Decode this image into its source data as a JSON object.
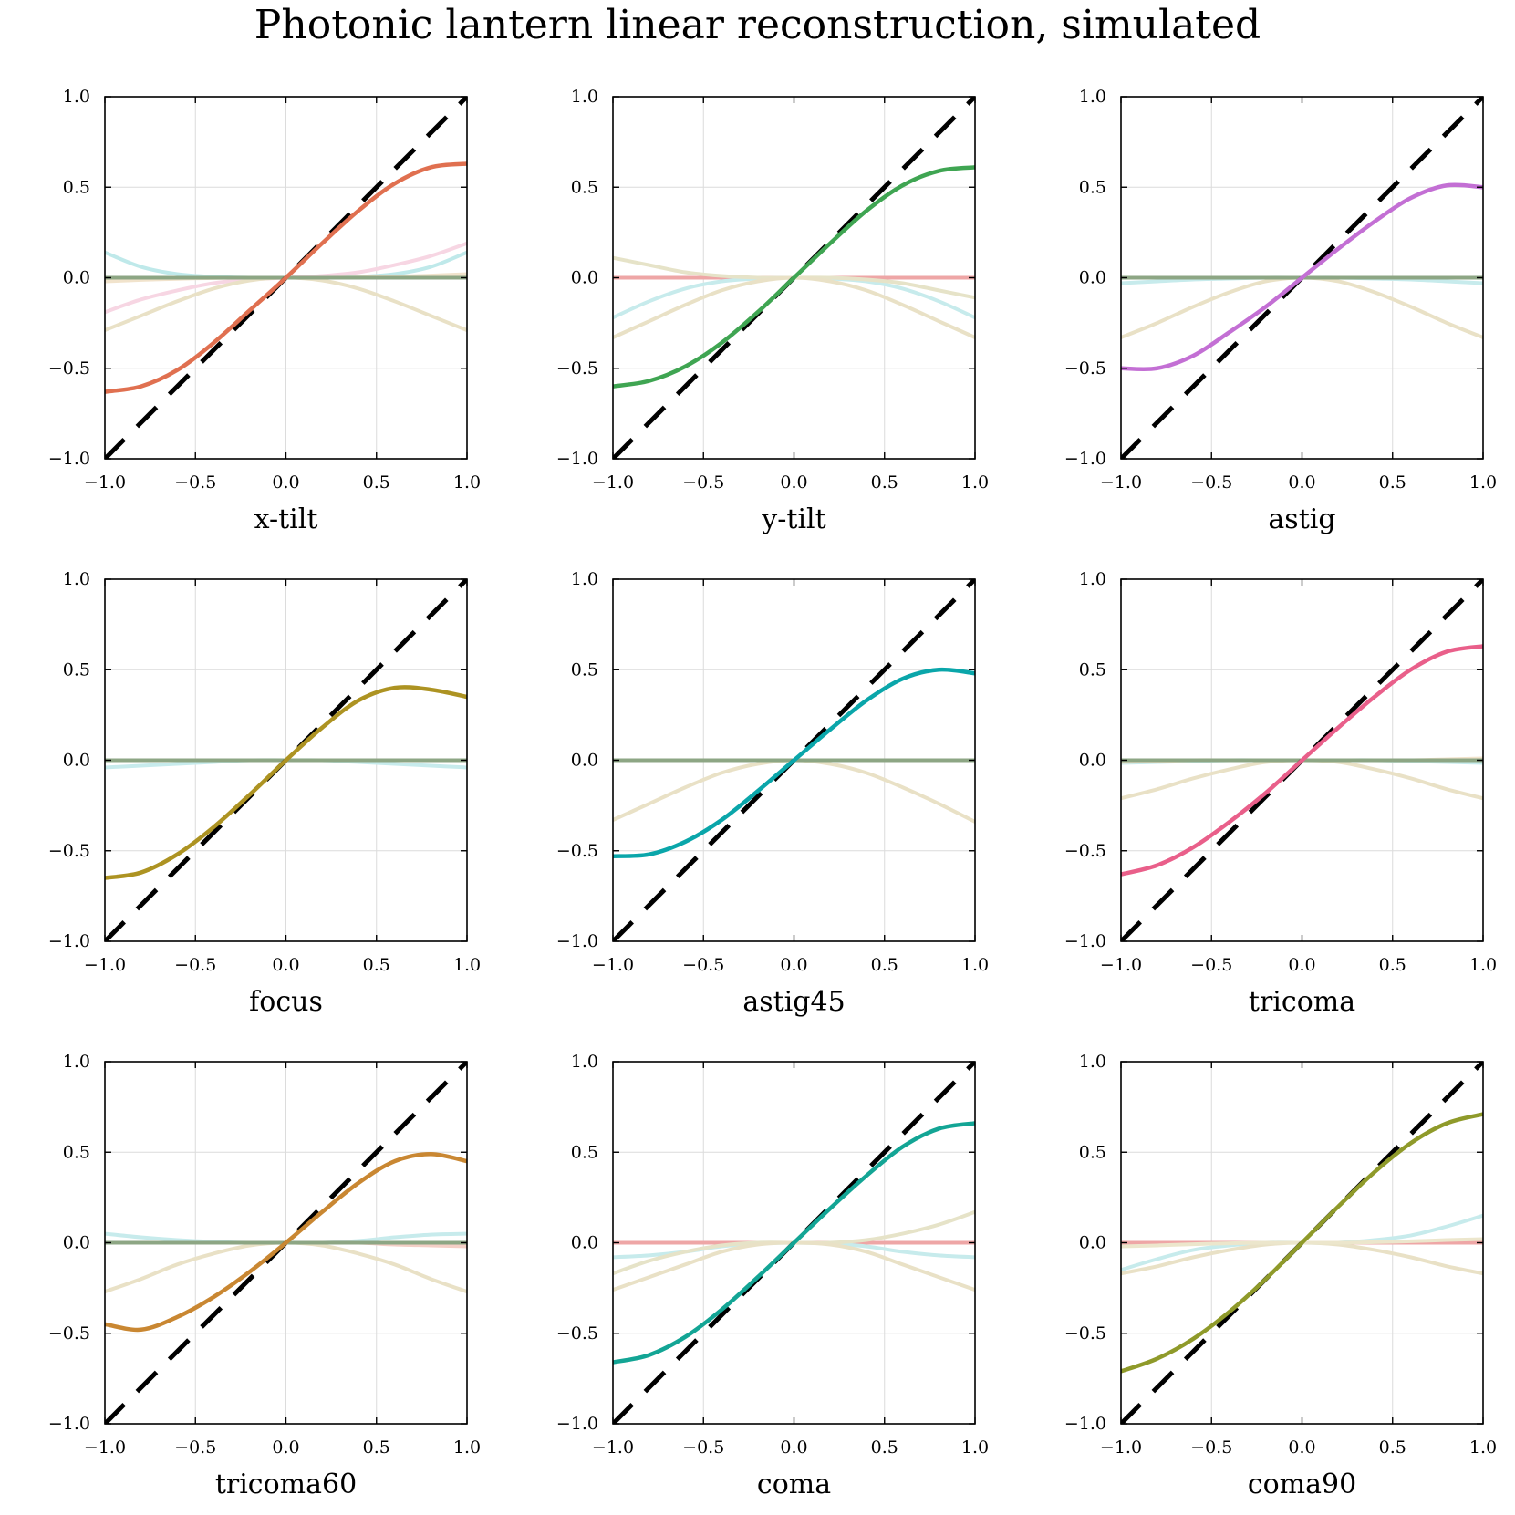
{
  "title": "Photonic lantern linear reconstruction, simulated",
  "chart_data": {
    "type": "line",
    "layout": "3x3 grid",
    "shared": {
      "xlim": [
        -1.0,
        1.0
      ],
      "ylim": [
        -1.0,
        1.0
      ],
      "xticks": [
        -1.0,
        -0.5,
        0.0,
        0.5,
        1.0
      ],
      "yticks": [
        -1.0,
        -0.5,
        0.0,
        0.5,
        1.0
      ],
      "xtick_labels": [
        "−1.0",
        "−0.5",
        "0.0",
        "0.5",
        "1.0"
      ],
      "ytick_labels": [
        "−1.0",
        "−0.5",
        "0.0",
        "0.5",
        "1.0"
      ],
      "grid": true,
      "reference_line": {
        "name": "ideal y = x",
        "style": "dashed",
        "color": "#000000",
        "x": [
          -1.0,
          1.0
        ],
        "y": [
          -1.0,
          1.0
        ]
      }
    },
    "x": [
      -1.0,
      -0.8,
      -0.6,
      -0.4,
      -0.2,
      0.0,
      0.2,
      0.4,
      0.6,
      0.8,
      1.0
    ],
    "panels": [
      {
        "xlabel": "x-tilt",
        "main": {
          "color": "#e07050",
          "y": [
            -0.63,
            -0.6,
            -0.51,
            -0.36,
            -0.18,
            0.0,
            0.19,
            0.37,
            0.52,
            0.61,
            0.63
          ]
        },
        "cross": [
          {
            "color": "#bfe9ea",
            "y": [
              0.14,
              0.06,
              0.02,
              0.005,
              0.0,
              0.0,
              0.0,
              0.005,
              0.02,
              0.06,
              0.14
            ]
          },
          {
            "color": "#f7d6e3",
            "y": [
              -0.19,
              -0.12,
              -0.07,
              -0.03,
              -0.01,
              0.0,
              0.01,
              0.03,
              0.07,
              0.12,
              0.19
            ]
          },
          {
            "color": "#e9e1c6",
            "y": [
              -0.29,
              -0.21,
              -0.13,
              -0.06,
              -0.015,
              0.0,
              -0.015,
              -0.06,
              -0.13,
              -0.21,
              -0.29
            ]
          },
          {
            "color": "#f1e3cc",
            "y": [
              -0.02,
              -0.012,
              -0.006,
              -0.002,
              0.0,
              0.0,
              0.0,
              0.002,
              0.006,
              0.012,
              0.02
            ]
          },
          {
            "color": "#8da684",
            "y": [
              0,
              0,
              0,
              0,
              0,
              0,
              0,
              0,
              0,
              0,
              0
            ]
          }
        ]
      },
      {
        "xlabel": "y-tilt",
        "main": {
          "color": "#3fa552",
          "y": [
            -0.6,
            -0.57,
            -0.49,
            -0.36,
            -0.19,
            0.0,
            0.19,
            0.37,
            0.51,
            0.59,
            0.61
          ]
        },
        "cross": [
          {
            "color": "#eea6a6",
            "y": [
              0,
              0,
              0,
              0,
              0,
              0,
              0,
              0,
              0,
              0,
              0
            ]
          },
          {
            "color": "#c7ebec",
            "y": [
              -0.22,
              -0.13,
              -0.06,
              -0.02,
              -0.005,
              0.0,
              -0.005,
              -0.02,
              -0.06,
              -0.13,
              -0.22
            ]
          },
          {
            "color": "#e6e3c8",
            "y": [
              0.11,
              0.07,
              0.03,
              0.01,
              0.0,
              0.0,
              0.0,
              -0.01,
              -0.03,
              -0.07,
              -0.11
            ]
          },
          {
            "color": "#e9e1c6",
            "y": [
              -0.33,
              -0.24,
              -0.15,
              -0.07,
              -0.02,
              0.0,
              -0.02,
              -0.07,
              -0.15,
              -0.24,
              -0.33
            ]
          }
        ]
      },
      {
        "xlabel": "astig",
        "main": {
          "color": "#c36fd4",
          "y": [
            -0.5,
            -0.5,
            -0.43,
            -0.3,
            -0.16,
            0.0,
            0.16,
            0.31,
            0.44,
            0.51,
            0.5
          ]
        },
        "cross": [
          {
            "color": "#c7ebec",
            "y": [
              -0.03,
              -0.02,
              -0.01,
              -0.005,
              0.0,
              0.0,
              0.0,
              -0.005,
              -0.01,
              -0.02,
              -0.03
            ]
          },
          {
            "color": "#e9e1c6",
            "y": [
              -0.33,
              -0.25,
              -0.16,
              -0.08,
              -0.02,
              0.0,
              -0.02,
              -0.08,
              -0.16,
              -0.25,
              -0.33
            ]
          },
          {
            "color": "#8da684",
            "y": [
              0,
              0,
              0,
              0,
              0,
              0,
              0,
              0,
              0,
              0,
              0
            ]
          }
        ]
      },
      {
        "xlabel": "focus",
        "main": {
          "color": "#ad9322",
          "y": [
            -0.65,
            -0.62,
            -0.52,
            -0.37,
            -0.19,
            0.0,
            0.18,
            0.33,
            0.4,
            0.39,
            0.35
          ]
        },
        "cross": [
          {
            "color": "#c7ebec",
            "y": [
              -0.04,
              -0.03,
              -0.02,
              -0.01,
              0.0,
              0.0,
              0.0,
              -0.01,
              -0.02,
              -0.03,
              -0.04
            ]
          },
          {
            "color": "#8da684",
            "y": [
              0,
              0,
              0,
              0,
              0,
              0,
              0,
              0,
              0,
              0,
              0
            ]
          }
        ]
      },
      {
        "xlabel": "astig45",
        "main": {
          "color": "#0aa6aa",
          "y": [
            -0.53,
            -0.52,
            -0.45,
            -0.33,
            -0.17,
            0.0,
            0.17,
            0.33,
            0.45,
            0.5,
            0.48
          ]
        },
        "cross": [
          {
            "color": "#e9e1c6",
            "y": [
              -0.33,
              -0.24,
              -0.15,
              -0.07,
              -0.02,
              0.0,
              -0.02,
              -0.07,
              -0.15,
              -0.24,
              -0.34
            ]
          },
          {
            "color": "#8da684",
            "y": [
              0,
              0,
              0,
              0,
              0,
              0,
              0,
              0,
              0,
              0,
              0
            ]
          }
        ]
      },
      {
        "xlabel": "tricoma",
        "main": {
          "color": "#e95f8a",
          "y": [
            -0.63,
            -0.58,
            -0.48,
            -0.34,
            -0.18,
            0.0,
            0.18,
            0.35,
            0.5,
            0.6,
            0.63
          ]
        },
        "cross": [
          {
            "color": "#e9e1c6",
            "y": [
              -0.21,
              -0.16,
              -0.1,
              -0.05,
              -0.01,
              0.0,
              -0.01,
              -0.05,
              -0.1,
              -0.16,
              -0.21
            ]
          },
          {
            "color": "#c7ebec",
            "y": [
              -0.015,
              -0.01,
              -0.005,
              0.0,
              0.0,
              0.0,
              0.0,
              0.0,
              -0.005,
              -0.01,
              -0.015
            ]
          },
          {
            "color": "#f1e3cc",
            "y": [
              -0.01,
              -0.005,
              0.0,
              0.0,
              0.0,
              0.0,
              0.0,
              0.0,
              0.0,
              0.005,
              0.01
            ]
          },
          {
            "color": "#8da684",
            "y": [
              0,
              0,
              0,
              0,
              0,
              0,
              0,
              0,
              0,
              0,
              0
            ]
          }
        ]
      },
      {
        "xlabel": "tricoma60",
        "main": {
          "color": "#c98732",
          "y": [
            -0.45,
            -0.48,
            -0.41,
            -0.3,
            -0.16,
            0.0,
            0.17,
            0.33,
            0.45,
            0.49,
            0.45
          ]
        },
        "cross": [
          {
            "color": "#c7ebec",
            "y": [
              0.05,
              0.03,
              0.015,
              0.005,
              0.0,
              0.0,
              0.0,
              0.01,
              0.03,
              0.045,
              0.05
            ]
          },
          {
            "color": "#e9e1c6",
            "y": [
              -0.27,
              -0.2,
              -0.12,
              -0.06,
              -0.015,
              0.0,
              -0.015,
              -0.06,
              -0.12,
              -0.2,
              -0.27
            ]
          },
          {
            "color": "#f4cfc6",
            "y": [
              0.0,
              0.0,
              0.0,
              0.0,
              0.0,
              0.0,
              0.0,
              0.0,
              -0.01,
              -0.015,
              -0.02
            ]
          },
          {
            "color": "#8da684",
            "y": [
              0,
              0,
              0,
              0,
              0,
              0,
              0,
              0,
              0,
              0,
              0
            ]
          }
        ]
      },
      {
        "xlabel": "coma",
        "main": {
          "color": "#13a595",
          "y": [
            -0.66,
            -0.62,
            -0.52,
            -0.37,
            -0.19,
            0.0,
            0.19,
            0.37,
            0.53,
            0.63,
            0.66
          ]
        },
        "cross": [
          {
            "color": "#eea6a6",
            "y": [
              0,
              0,
              0,
              0,
              0,
              0,
              0,
              0,
              0,
              0,
              0
            ]
          },
          {
            "color": "#c7ebec",
            "y": [
              -0.08,
              -0.07,
              -0.05,
              -0.02,
              -0.005,
              0.0,
              -0.005,
              -0.02,
              -0.05,
              -0.07,
              -0.08
            ]
          },
          {
            "color": "#e6e3c8",
            "y": [
              -0.17,
              -0.1,
              -0.05,
              -0.015,
              0.0,
              0.0,
              0.0,
              0.015,
              0.05,
              0.1,
              0.17
            ]
          },
          {
            "color": "#e9e1c6",
            "y": [
              -0.26,
              -0.19,
              -0.12,
              -0.05,
              -0.01,
              0.0,
              -0.01,
              -0.05,
              -0.12,
              -0.19,
              -0.26
            ]
          }
        ]
      },
      {
        "xlabel": "coma90",
        "main": {
          "color": "#8f9a2a",
          "y": [
            -0.71,
            -0.64,
            -0.53,
            -0.38,
            -0.2,
            0.0,
            0.2,
            0.39,
            0.55,
            0.66,
            0.71
          ]
        },
        "cross": [
          {
            "color": "#eea6a6",
            "y": [
              0,
              0,
              0,
              0,
              0,
              0,
              0,
              0,
              0,
              0,
              0
            ]
          },
          {
            "color": "#c7ebec",
            "y": [
              -0.15,
              -0.09,
              -0.04,
              -0.015,
              0.0,
              0.0,
              0.0,
              0.015,
              0.04,
              0.09,
              0.15
            ]
          },
          {
            "color": "#e9e1c6",
            "y": [
              -0.17,
              -0.13,
              -0.08,
              -0.04,
              -0.01,
              0.0,
              -0.01,
              -0.04,
              -0.08,
              -0.13,
              -0.17
            ]
          },
          {
            "color": "#ece6cc",
            "y": [
              -0.02,
              -0.015,
              -0.008,
              -0.003,
              0.0,
              0.0,
              0.0,
              0.003,
              0.008,
              0.015,
              0.02
            ]
          }
        ]
      }
    ]
  }
}
